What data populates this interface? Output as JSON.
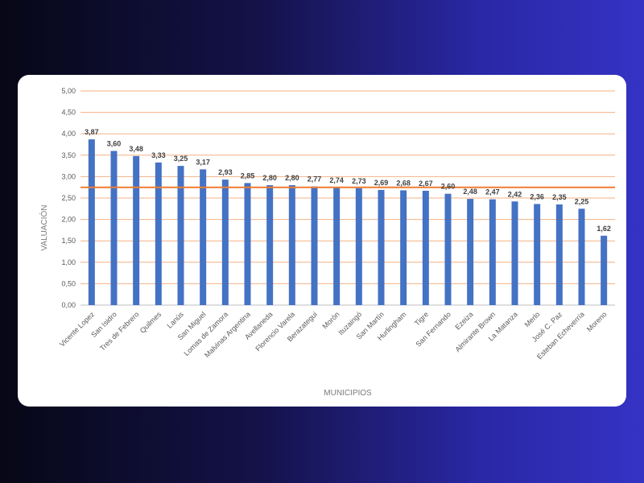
{
  "chart_data": {
    "type": "bar",
    "title": "",
    "xlabel": "MUNICIPIOS",
    "ylabel": "VALUACIÓN",
    "ylim": [
      0,
      5
    ],
    "yticks": [
      0,
      0.5,
      1,
      1.5,
      2,
      2.5,
      3,
      3.5,
      4,
      4.5,
      5
    ],
    "ytick_labels": [
      "0,00",
      "0,50",
      "1,00",
      "1,50",
      "2,00",
      "2,50",
      "3,00",
      "3,50",
      "4,00",
      "4,50",
      "5,00"
    ],
    "grid": true,
    "reference_line": 2.75,
    "categories": [
      "Vicente Lopez",
      "San Isidro",
      "Tres de Febrero",
      "Quilmes",
      "Lanús",
      "San Miguel",
      "Lomas de Zamora",
      "Malvinas Argentina",
      "Avellaneda",
      "Florencio Varela",
      "Berazategui",
      "Morón",
      "Ituzaingó",
      "San Martín",
      "Hurlingham",
      "Tigre",
      "San Fernando",
      "Ezeiza",
      "Almirante Brown",
      "La Matanza",
      "Merlo",
      "José C. Paz",
      "Esteban Echeverría",
      "Moreno"
    ],
    "values": [
      3.87,
      3.6,
      3.48,
      3.33,
      3.25,
      3.17,
      2.93,
      2.85,
      2.8,
      2.8,
      2.77,
      2.74,
      2.73,
      2.69,
      2.68,
      2.67,
      2.6,
      2.48,
      2.47,
      2.42,
      2.36,
      2.35,
      2.25,
      1.62
    ],
    "value_labels": [
      "3,87",
      "3,60",
      "3,48",
      "3,33",
      "3,25",
      "3,17",
      "2,93",
      "2,85",
      "2,80",
      "2,80",
      "2,77",
      "2,74",
      "2,73",
      "2,69",
      "2,68",
      "2,67",
      "2,60",
      "2,48",
      "2,47",
      "2,42",
      "2,36",
      "2,35",
      "2,25",
      "1,62"
    ],
    "colors": {
      "bar": "#4472c4",
      "gridline": "#f4b183",
      "reference_line": "#ed7d31",
      "axis": "#bfbfbf"
    }
  }
}
